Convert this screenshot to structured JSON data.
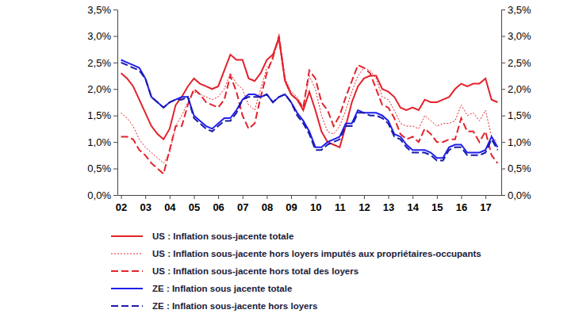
{
  "chart_data": {
    "type": "line",
    "x": [
      2002,
      2002.25,
      2002.5,
      2002.75,
      2003,
      2003.25,
      2003.5,
      2003.75,
      2004,
      2004.25,
      2004.5,
      2004.75,
      2005,
      2005.25,
      2005.5,
      2005.75,
      2006,
      2006.25,
      2006.5,
      2006.75,
      2007,
      2007.25,
      2007.5,
      2007.75,
      2008,
      2008.25,
      2008.5,
      2008.75,
      2009,
      2009.25,
      2009.5,
      2009.75,
      2010,
      2010.25,
      2010.5,
      2010.75,
      2011,
      2011.25,
      2011.5,
      2011.75,
      2012,
      2012.25,
      2012.5,
      2012.75,
      2013,
      2013.25,
      2013.5,
      2013.75,
      2014,
      2014.25,
      2014.5,
      2014.75,
      2015,
      2015.25,
      2015.5,
      2015.75,
      2016,
      2016.25,
      2016.5,
      2016.75,
      2017,
      2017.25,
      2017.5
    ],
    "series": [
      {
        "name": "US : Inflation sous-jacente totale",
        "color": "#e3222b",
        "line_style": "solid",
        "values": [
          2.3,
          2.2,
          2.05,
          1.8,
          1.55,
          1.3,
          1.15,
          1.05,
          1.25,
          1.7,
          1.85,
          2.05,
          2.2,
          2.1,
          2.05,
          2.0,
          2.05,
          2.35,
          2.65,
          2.55,
          2.55,
          2.2,
          2.15,
          2.3,
          2.55,
          2.65,
          2.95,
          2.15,
          1.9,
          1.8,
          1.6,
          1.95,
          1.6,
          1.2,
          1.0,
          0.95,
          0.9,
          1.3,
          1.75,
          2.05,
          2.2,
          2.25,
          2.25,
          2.0,
          1.95,
          1.85,
          1.65,
          1.6,
          1.65,
          1.6,
          1.8,
          1.75,
          1.75,
          1.8,
          1.85,
          2.0,
          2.1,
          2.05,
          2.1,
          2.1,
          2.2,
          1.8,
          1.75
        ]
      },
      {
        "name": "US : Inflation sous-jacente hors loyers imputés aux propriétaires-occupants",
        "color": "#e3222b",
        "line_style": "dotted",
        "values": [
          1.55,
          1.45,
          1.3,
          1.05,
          0.9,
          0.8,
          0.7,
          0.6,
          0.8,
          1.3,
          1.5,
          1.75,
          1.95,
          1.9,
          1.85,
          1.8,
          1.85,
          2.0,
          2.3,
          2.1,
          2.0,
          1.7,
          1.6,
          2.0,
          2.4,
          2.55,
          3.05,
          2.2,
          1.95,
          1.85,
          1.65,
          2.25,
          2.0,
          1.5,
          1.2,
          1.15,
          1.3,
          1.6,
          1.95,
          2.25,
          2.4,
          2.35,
          2.2,
          1.85,
          1.8,
          1.6,
          1.35,
          1.3,
          1.3,
          1.25,
          1.5,
          1.4,
          1.3,
          1.35,
          1.35,
          1.4,
          1.7,
          1.5,
          1.55,
          1.4,
          1.6,
          1.1,
          1.0
        ]
      },
      {
        "name": "US : Inflation sous-jacente hors total des loyers",
        "color": "#e3222b",
        "line_style": "dashed",
        "values": [
          1.1,
          1.1,
          1.05,
          0.85,
          0.75,
          0.6,
          0.5,
          0.4,
          0.85,
          1.3,
          1.3,
          1.7,
          2.0,
          1.9,
          1.75,
          1.7,
          1.65,
          1.8,
          2.25,
          1.95,
          1.5,
          1.25,
          1.35,
          1.85,
          2.3,
          2.6,
          3.0,
          2.15,
          1.9,
          1.8,
          1.65,
          2.35,
          2.2,
          1.75,
          1.6,
          1.3,
          1.5,
          1.85,
          2.15,
          2.45,
          2.4,
          2.3,
          2.0,
          1.7,
          1.65,
          1.45,
          1.15,
          1.05,
          1.1,
          1.0,
          1.25,
          1.15,
          1.0,
          1.0,
          1.05,
          1.05,
          1.45,
          1.2,
          1.2,
          1.0,
          1.2,
          0.75,
          0.6
        ]
      },
      {
        "name": "ZE : Inflation sous jacente totale",
        "color": "#1f1fef",
        "line_style": "solid",
        "values": [
          2.55,
          2.5,
          2.45,
          2.4,
          2.2,
          1.85,
          1.75,
          1.65,
          1.75,
          1.8,
          1.85,
          1.85,
          1.5,
          1.4,
          1.3,
          1.25,
          1.35,
          1.45,
          1.45,
          1.6,
          1.8,
          1.9,
          1.9,
          1.85,
          1.9,
          1.75,
          1.85,
          1.9,
          1.75,
          1.55,
          1.4,
          1.2,
          0.9,
          0.9,
          1.0,
          1.05,
          1.1,
          1.35,
          1.35,
          1.6,
          1.55,
          1.55,
          1.55,
          1.5,
          1.4,
          1.15,
          1.1,
          0.95,
          0.85,
          0.85,
          0.85,
          0.8,
          0.7,
          0.7,
          0.9,
          0.95,
          0.95,
          0.8,
          0.8,
          0.8,
          0.85,
          1.1,
          0.9
        ]
      },
      {
        "name": "ZE : Inflation sous-jacente hors loyers",
        "color": "#1a1aa8",
        "line_style": "dashed",
        "values": [
          2.5,
          2.45,
          2.4,
          2.35,
          2.2,
          1.85,
          1.75,
          1.65,
          1.75,
          1.8,
          1.8,
          1.85,
          1.45,
          1.35,
          1.25,
          1.2,
          1.3,
          1.4,
          1.4,
          1.55,
          1.8,
          1.85,
          1.85,
          1.85,
          1.9,
          1.75,
          1.85,
          1.9,
          1.75,
          1.5,
          1.35,
          1.15,
          0.85,
          0.85,
          0.95,
          1.0,
          1.05,
          1.3,
          1.3,
          1.55,
          1.55,
          1.5,
          1.5,
          1.45,
          1.35,
          1.1,
          1.05,
          0.9,
          0.8,
          0.8,
          0.8,
          0.75,
          0.65,
          0.65,
          0.85,
          0.9,
          0.9,
          0.75,
          0.75,
          0.75,
          0.8,
          1.05,
          0.85
        ]
      }
    ],
    "xlim": [
      2001.85,
      2017.65
    ],
    "xticks": [
      {
        "value": 2002,
        "label": "02"
      },
      {
        "value": 2003,
        "label": "03"
      },
      {
        "value": 2004,
        "label": "04"
      },
      {
        "value": 2005,
        "label": "05"
      },
      {
        "value": 2006,
        "label": "06"
      },
      {
        "value": 2007,
        "label": "07"
      },
      {
        "value": 2008,
        "label": "08"
      },
      {
        "value": 2009,
        "label": "09"
      },
      {
        "value": 2010,
        "label": "10"
      },
      {
        "value": 2011,
        "label": "11"
      },
      {
        "value": 2012,
        "label": "12"
      },
      {
        "value": 2013,
        "label": "13"
      },
      {
        "value": 2014,
        "label": "14"
      },
      {
        "value": 2015,
        "label": "15"
      },
      {
        "value": 2016,
        "label": "16"
      },
      {
        "value": 2017,
        "label": "17"
      }
    ],
    "ylim": [
      0,
      3.5
    ],
    "yticks": [
      {
        "value": 0,
        "label": "0,0%"
      },
      {
        "value": 0.5,
        "label": "0,5%"
      },
      {
        "value": 1,
        "label": "1,0%"
      },
      {
        "value": 1.5,
        "label": "1,5%"
      },
      {
        "value": 2,
        "label": "2,0%"
      },
      {
        "value": 2.5,
        "label": "2,5%"
      },
      {
        "value": 3,
        "label": "3,0%"
      },
      {
        "value": 3.5,
        "label": "3,5%"
      }
    ],
    "y2lim": [
      0,
      3.5
    ],
    "y2ticks": [
      {
        "value": 0,
        "label": "0,0%"
      },
      {
        "value": 0.5,
        "label": "0,5%"
      },
      {
        "value": 1,
        "label": "1,0%"
      },
      {
        "value": 1.5,
        "label": "1,5%"
      },
      {
        "value": 2,
        "label": "2,0%"
      },
      {
        "value": 2.5,
        "label": "2,5%"
      },
      {
        "value": 3,
        "label": "3,0%"
      },
      {
        "value": 3.5,
        "label": "3,5%"
      }
    ],
    "grid": false,
    "legend": "bottom"
  }
}
